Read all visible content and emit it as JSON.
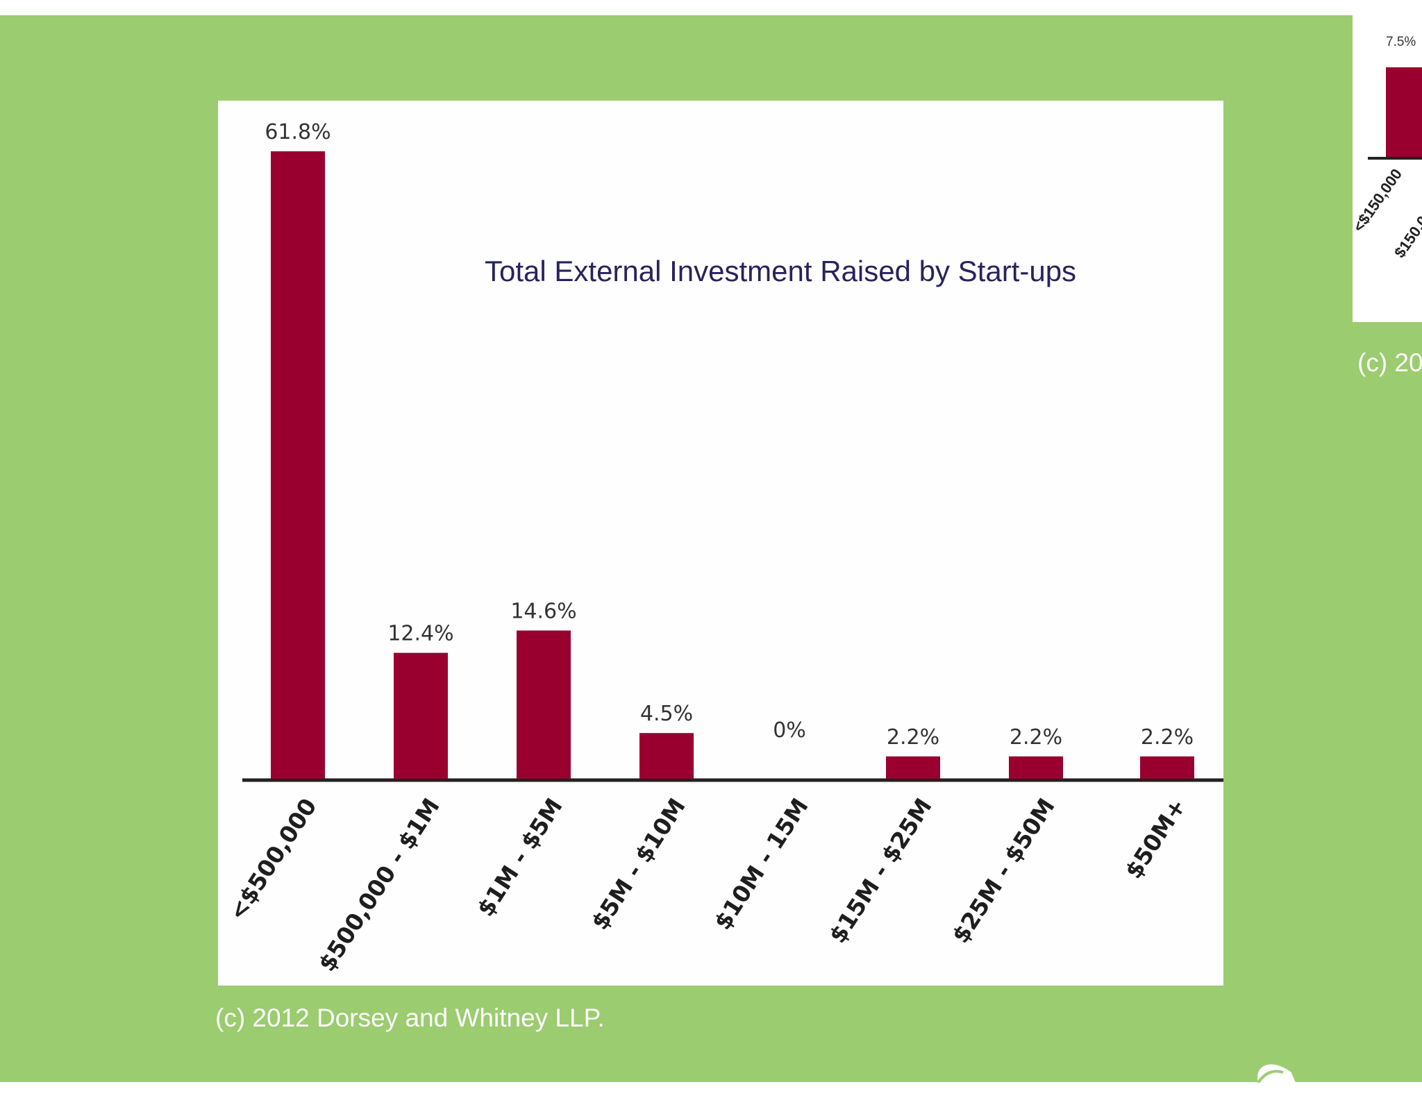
{
  "chart_data": {
    "type": "bar",
    "title": "Total External Investment Raised by Start-ups",
    "categories": [
      "<$500,000",
      "$500,000 - $1M",
      "$1M - $5M",
      "$5M - $10M",
      "$10M - 15M",
      "$15M - $25M",
      "$25M - $50M",
      "$50M+"
    ],
    "values": [
      61.8,
      12.4,
      14.6,
      4.5,
      0,
      2.2,
      2.2,
      2.2
    ],
    "value_labels": [
      "61.8%",
      "12.4%",
      "14.6%",
      "4.5%",
      "0%",
      "2.2%",
      "2.2%",
      "2.2%"
    ],
    "xlabel": "",
    "ylabel": "",
    "ylim": [
      0,
      61.8
    ],
    "grid": false,
    "bar_color": "#990030",
    "axis_color": "#222222"
  },
  "copyright": "(c) 2012 Dorsey and Whitney LLP.",
  "side_chart": {
    "value_label": "7.5%",
    "category_labels": [
      "<$150,000",
      "$150,0"
    ],
    "copyright": "(c) 20"
  },
  "colors": {
    "background": "#9bcc70",
    "panel": "#ffffff",
    "title": "#27235e",
    "bar": "#990030"
  }
}
